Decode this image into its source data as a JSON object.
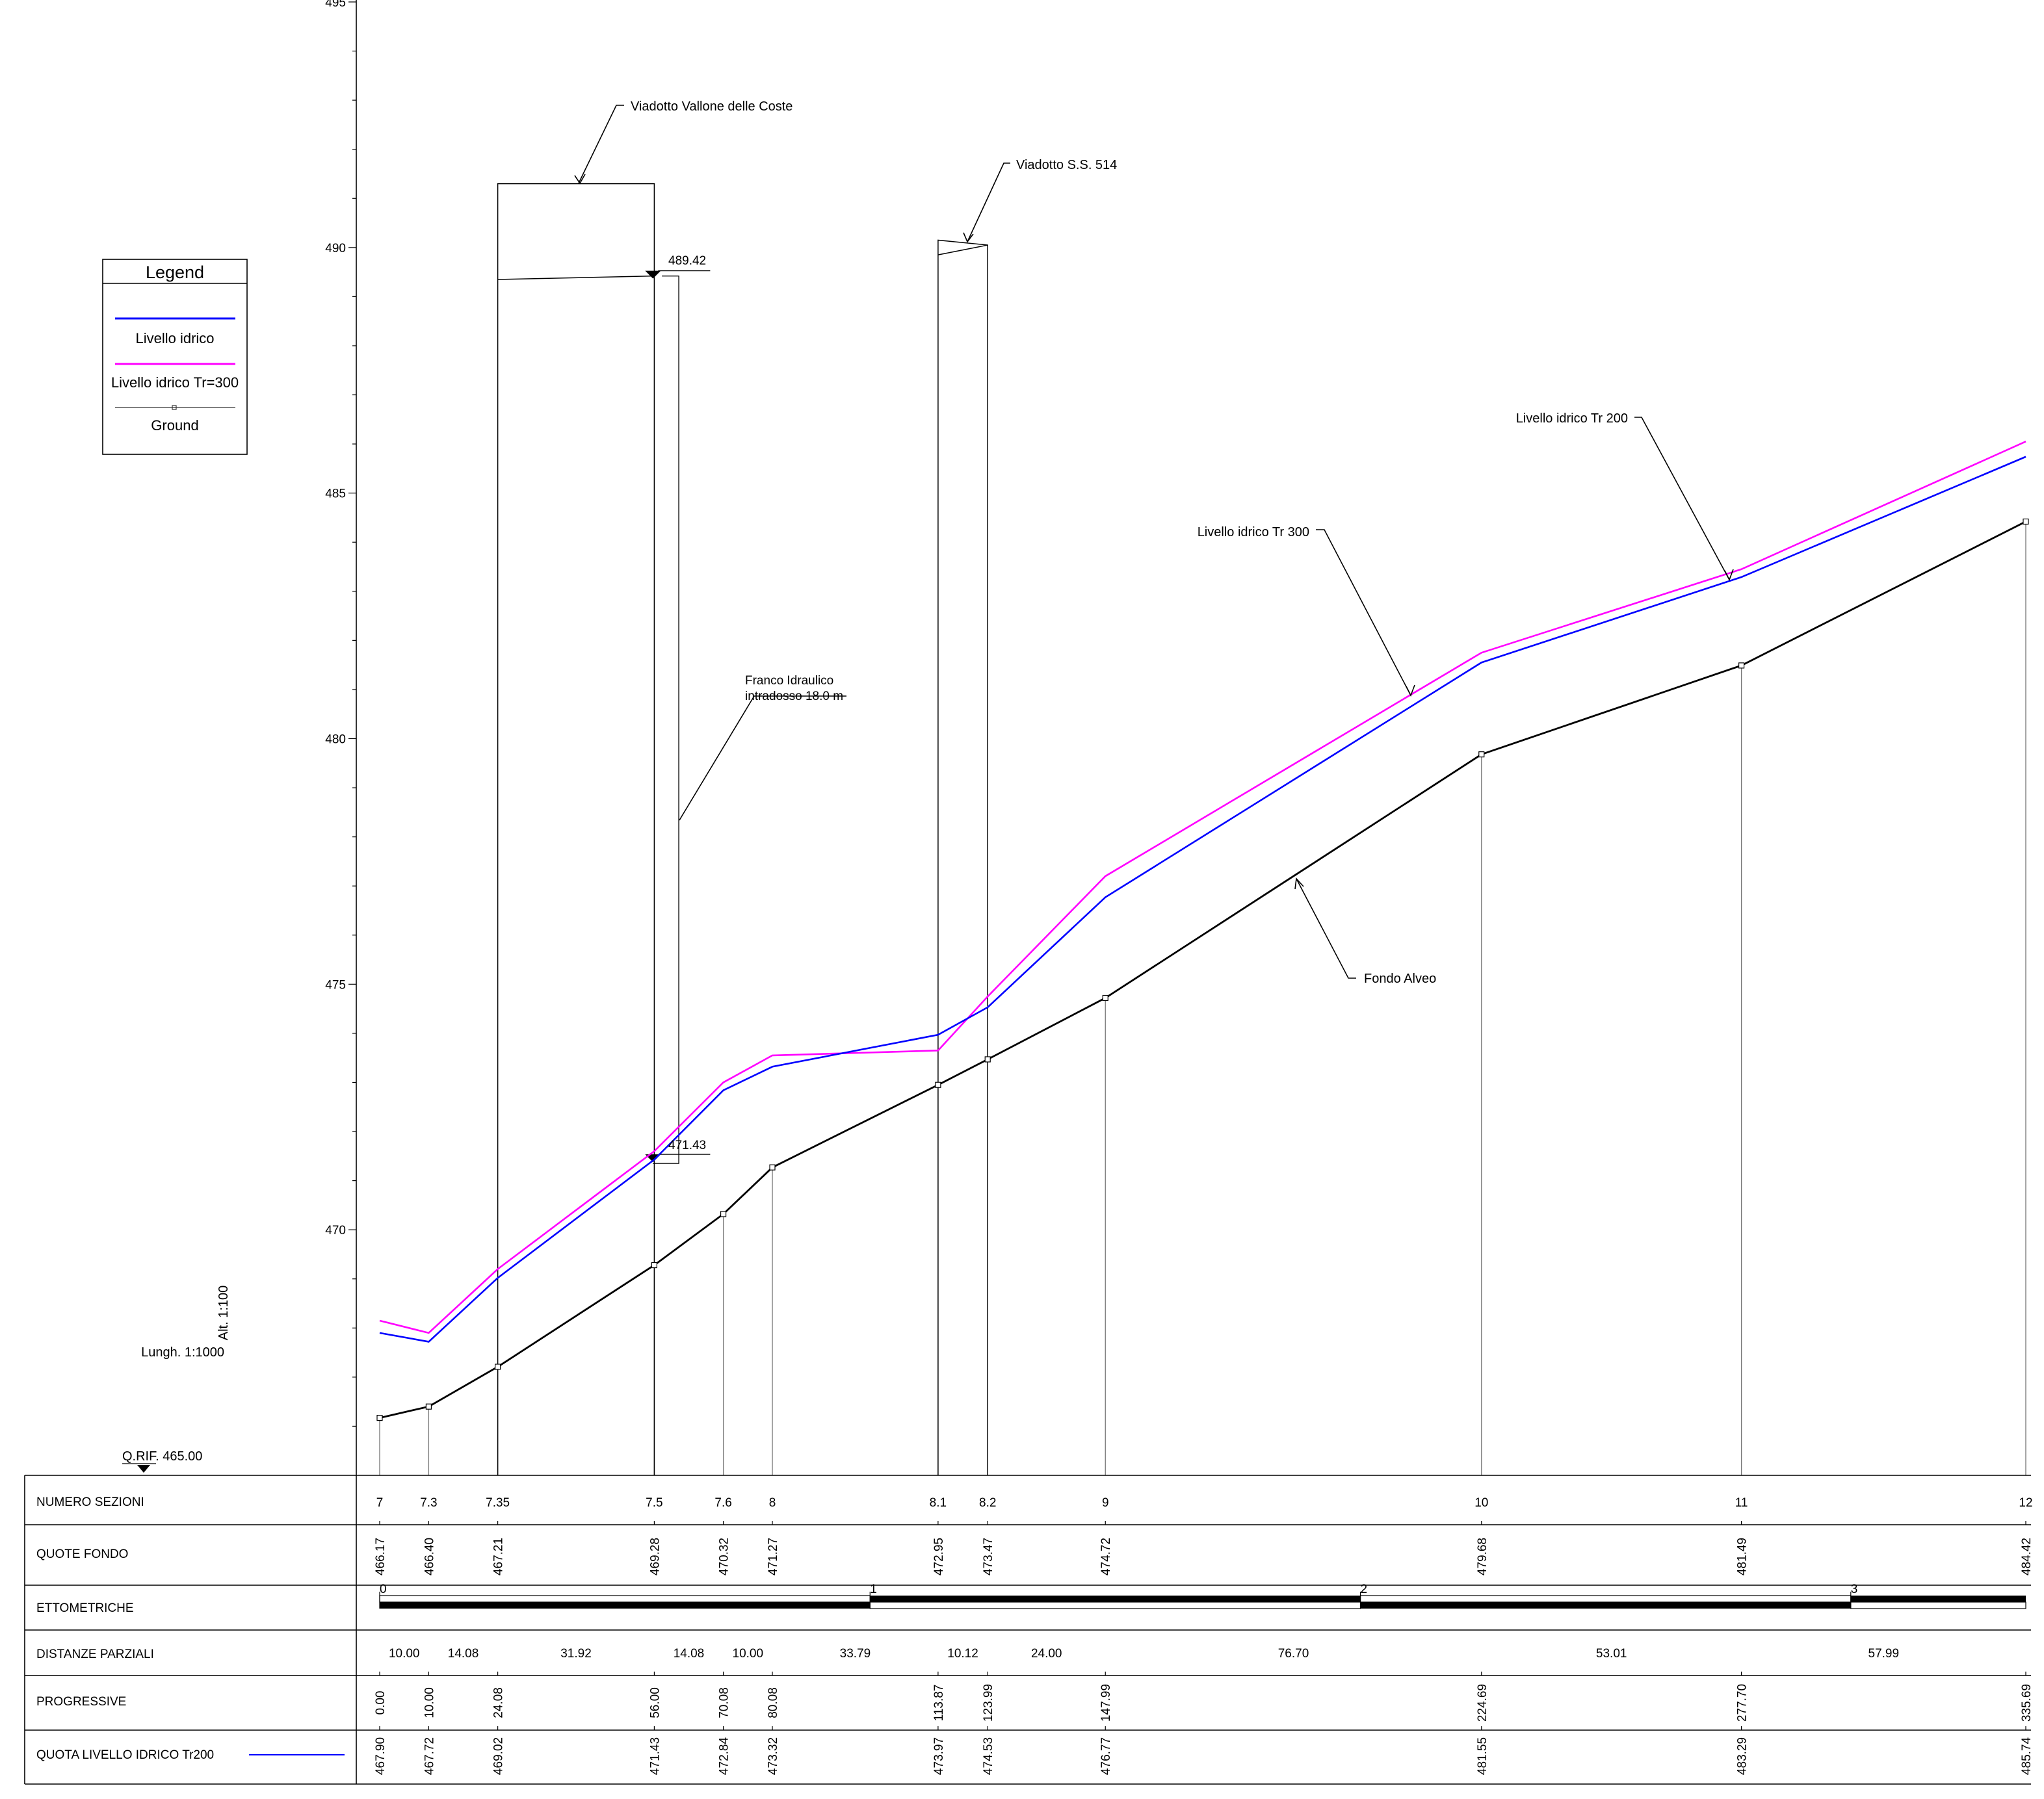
{
  "y_axis": {
    "min": 465,
    "max": 495,
    "ticks": [
      {
        "value": 470,
        "label": "470"
      },
      {
        "value": 475,
        "label": "475"
      },
      {
        "value": 480,
        "label": "480"
      },
      {
        "value": 485,
        "label": "485"
      },
      {
        "value": 490,
        "label": "490"
      },
      {
        "value": 495,
        "label": "495"
      }
    ]
  },
  "x_range": [
    0,
    335.69
  ],
  "scale": {
    "alt": "Alt. 1:100",
    "lungh": "Lungh. 1:1000",
    "q_rif": "Q.RIF. 465.00"
  },
  "legend": {
    "title": "Legend",
    "items": [
      {
        "label": "Livello idrico",
        "color": "#0000ff",
        "type": "line"
      },
      {
        "label": "Livello idrico Tr=300",
        "color": "#ff00ff",
        "type": "line"
      },
      {
        "label": "Ground",
        "color": "#000000",
        "type": "line-marker"
      }
    ]
  },
  "colors": {
    "tr200": "#0000ff",
    "tr300": "#ff00ff",
    "ground": "#000000",
    "thin": "#555555"
  },
  "chart_data": {
    "type": "line",
    "x_unit": "progressive distance (m)",
    "y_unit": "elevation (m)",
    "ylim": [
      465,
      495
    ],
    "xlim": [
      0,
      335.69
    ],
    "sections": [
      {
        "name": "7",
        "x": 0.0,
        "fondo": 466.17,
        "tr200": 467.9,
        "tr300": 468.15
      },
      {
        "name": "7.3",
        "x": 10.0,
        "fondo": 466.4,
        "tr200": 467.72,
        "tr300": 467.9
      },
      {
        "name": "7.35",
        "x": 24.08,
        "fondo": 467.21,
        "tr200": 469.02,
        "tr300": 469.2
      },
      {
        "name": "7.5",
        "x": 56.0,
        "fondo": 469.28,
        "tr200": 471.43,
        "tr300": 471.6
      },
      {
        "name": "7.6",
        "x": 70.08,
        "fondo": 470.32,
        "tr200": 472.84,
        "tr300": 473.0
      },
      {
        "name": "8",
        "x": 80.08,
        "fondo": 471.27,
        "tr200": 473.32,
        "tr300": 473.55
      },
      {
        "name": "8.1",
        "x": 113.87,
        "fondo": 472.95,
        "tr200": 473.97,
        "tr300": 473.65
      },
      {
        "name": "8.2",
        "x": 123.99,
        "fondo": 473.47,
        "tr200": 474.53,
        "tr300": 474.75
      },
      {
        "name": "9",
        "x": 147.99,
        "fondo": 474.72,
        "tr200": 476.77,
        "tr300": 477.2
      },
      {
        "name": "10",
        "x": 224.69,
        "fondo": 479.68,
        "tr200": 481.55,
        "tr300": 481.75
      },
      {
        "name": "11",
        "x": 277.7,
        "fondo": 481.49,
        "tr200": 483.29,
        "tr300": 483.45
      },
      {
        "name": "12",
        "x": 335.69,
        "fondo": 484.42,
        "tr200": 485.74,
        "tr300": 486.05
      }
    ],
    "series": [
      {
        "name": "Livello idrico",
        "key": "tr200"
      },
      {
        "name": "Livello idrico Tr=300",
        "key": "tr300"
      },
      {
        "name": "Ground",
        "key": "fondo"
      }
    ]
  },
  "bridges": [
    {
      "x_left": 24.08,
      "x_right": 56.0,
      "y_top": 491.3,
      "y_soffit_left": 489.35,
      "y_soffit_right": 489.42,
      "pier_x": 61.0,
      "pier_top": 489.42,
      "pier_bottom": 471.43
    },
    {
      "x_left": 113.87,
      "x_right": 123.99,
      "y_top_left": 490.15,
      "y_top_right": 490.05,
      "y_soffit_left": 489.85
    }
  ],
  "annotations": {
    "viadotto1": {
      "text": "Viadotto Vallone delle Coste"
    },
    "viadotto2": {
      "text": "Viadotto S.S. 514"
    },
    "elev_top": {
      "text": "489.42"
    },
    "elev_bottom": {
      "text": "471.43"
    },
    "franco": {
      "line1": "Franco Idraulico",
      "line2": "intradosso 18.0 m"
    },
    "tr300": {
      "text": "Livello idrico Tr 300"
    },
    "tr200": {
      "text": "Livello idrico Tr 200"
    },
    "fondo": {
      "text": "Fondo Alveo"
    }
  },
  "table": {
    "rows": [
      {
        "key": "numero",
        "label": "NUMERO SEZIONI"
      },
      {
        "key": "quote",
        "label": "QUOTE FONDO"
      },
      {
        "key": "etto",
        "label": "ETTOMETRICHE"
      },
      {
        "key": "dist",
        "label": "DISTANZE PARZIALI"
      },
      {
        "key": "prog",
        "label": "PROGRESSIVE"
      },
      {
        "key": "quota_liv",
        "label": "QUOTA LIVELLO IDRICO Tr200"
      }
    ],
    "numero_sezioni": [
      "7",
      "7.3",
      "7.35",
      "7.5",
      "7.6",
      "8",
      "8.1",
      "8.2",
      "9",
      "10",
      "11",
      "12"
    ],
    "quote_fondo": [
      "466.17",
      "466.40",
      "467.21",
      "469.28",
      "470.32",
      "471.27",
      "472.95",
      "473.47",
      "474.72",
      "479.68",
      "481.49",
      "484.42"
    ],
    "ettometriche": [
      "0",
      "1",
      "2",
      "3"
    ],
    "distanze_parziali": [
      "10.00",
      "14.08",
      "31.92",
      "14.08",
      "10.00",
      "33.79",
      "10.12",
      "24.00",
      "76.70",
      "53.01",
      "57.99"
    ],
    "progressive": [
      "0.00",
      "10.00",
      "24.08",
      "56.00",
      "70.08",
      "80.08",
      "113.87",
      "123.99",
      "147.99",
      "224.69",
      "277.70",
      "335.69"
    ],
    "quota_livello_tr200": [
      "467.90",
      "467.72",
      "469.02",
      "471.43",
      "472.84",
      "473.32",
      "473.97",
      "474.53",
      "476.77",
      "481.55",
      "483.29",
      "485.74"
    ]
  }
}
